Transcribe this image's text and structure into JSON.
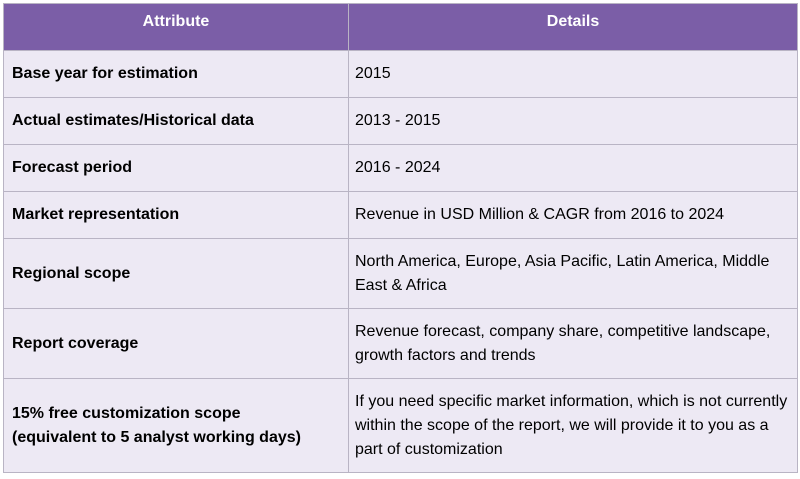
{
  "headers": {
    "attribute": "Attribute",
    "details": "Details"
  },
  "rows": [
    {
      "attribute": "Base year for estimation",
      "details": "2015"
    },
    {
      "attribute": "Actual estimates/Historical data",
      "details": "2013 - 2015"
    },
    {
      "attribute": "Forecast period",
      "details": "2016 - 2024"
    },
    {
      "attribute": "Market representation",
      "details": "Revenue in USD Million & CAGR from 2016 to 2024"
    },
    {
      "attribute": "Regional scope",
      "details": "North America, Europe, Asia Pacific, Latin America, Middle East & Africa"
    },
    {
      "attribute": "Report coverage",
      "details": "Revenue forecast, company share, competitive landscape, growth factors and trends"
    },
    {
      "attribute_line1": "15% free customization scope",
      "attribute_line2": "(equivalent to 5 analyst working days)",
      "details": "If you need specific market information, which is not currently within the scope of the report, we will provide it to you as a part of customization"
    }
  ],
  "colors": {
    "header_bg": "#7b5ea7",
    "row_bg": "#ede9f4",
    "border": "#b9b4c4"
  }
}
